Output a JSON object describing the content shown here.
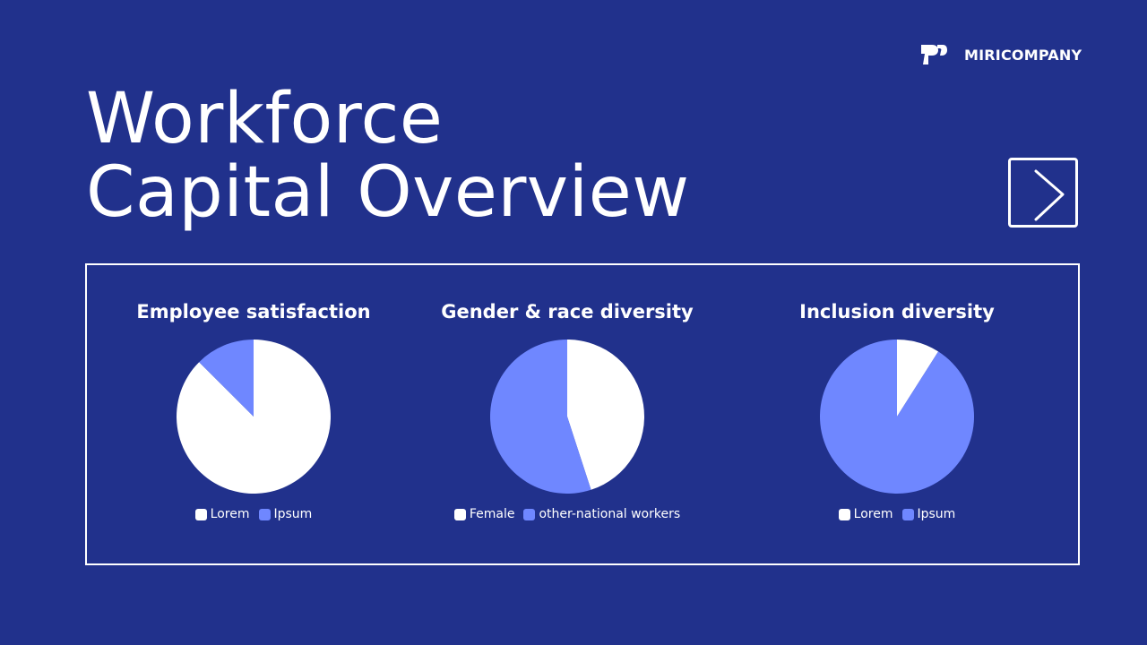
{
  "brand": {
    "name": "MIRICOMPANY"
  },
  "title": {
    "line1": "Workforce",
    "line2": "Capital Overview"
  },
  "colors": {
    "background": "#21318c",
    "white": "#ffffff",
    "accent": "#6f87ff"
  },
  "chart_data": [
    {
      "type": "pie",
      "title": "Employee satisfaction",
      "categories": [
        "Lorem",
        "Ipsum"
      ],
      "values": [
        87.5,
        12.5
      ],
      "colors": [
        "#ffffff",
        "#6f87ff"
      ],
      "legend_position": "bottom"
    },
    {
      "type": "pie",
      "title": "Gender & race diversity",
      "categories": [
        "Female",
        "other-national workers"
      ],
      "values": [
        45,
        55
      ],
      "colors": [
        "#ffffff",
        "#6f87ff"
      ],
      "legend_position": "bottom"
    },
    {
      "type": "pie",
      "title": "Inclusion diversity",
      "categories": [
        "Lorem",
        "Ipsum"
      ],
      "values": [
        9,
        91
      ],
      "colors": [
        "#ffffff",
        "#6f87ff"
      ],
      "legend_position": "bottom"
    }
  ]
}
